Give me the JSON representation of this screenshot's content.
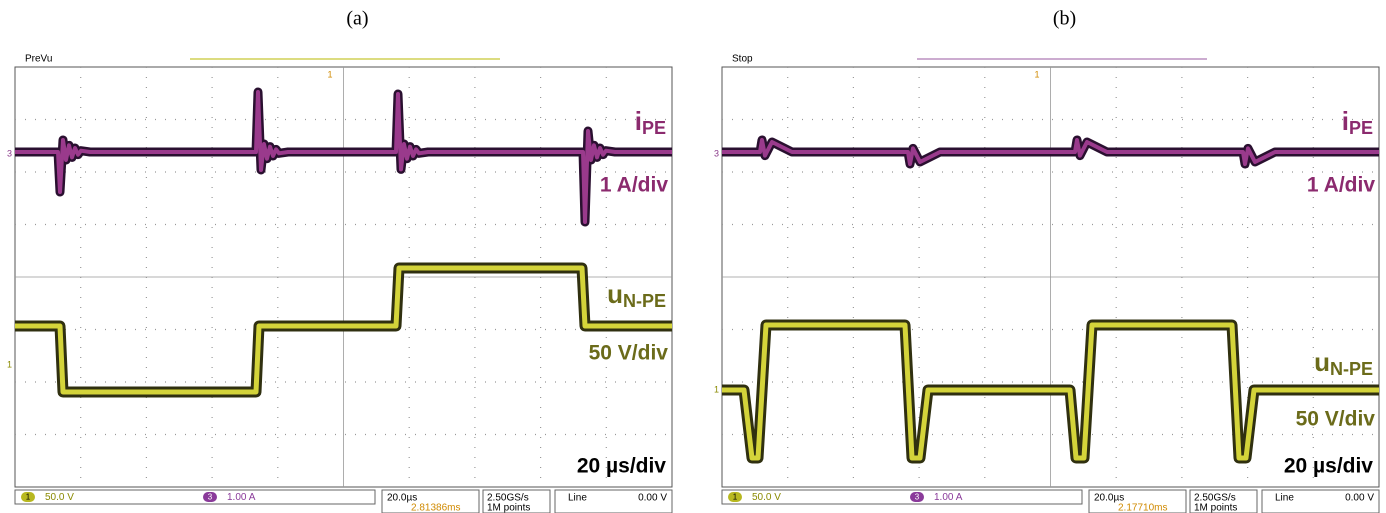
{
  "panels": [
    {
      "label": "(a)",
      "mode": "PreVu",
      "current": {
        "symbol": "i",
        "sub": "PE",
        "scale": "1 A/div"
      },
      "voltage": {
        "symbol": "u",
        "sub": "N-PE",
        "scale": "50 V/div"
      },
      "time_scale": "20 µs/div",
      "status": {
        "ch1_num": "1",
        "ch1": "50.0 V",
        "ch3_num": "3",
        "ch3": "1.00 A",
        "timebase": "20.0µs",
        "delay": "2.81386ms",
        "rate": "2.50GS/s",
        "points": "1M points",
        "trigger": "Line",
        "level": "0.00 V"
      }
    },
    {
      "label": "(b)",
      "mode": "Stop",
      "current": {
        "symbol": "i",
        "sub": "PE",
        "scale": "1 A/div"
      },
      "voltage": {
        "symbol": "u",
        "sub": "N-PE",
        "scale": "50 V/div"
      },
      "time_scale": "20 µs/div",
      "status": {
        "ch1_num": "1",
        "ch1": "50.0 V",
        "ch3_num": "3",
        "ch3": "1.00 A",
        "timebase": "20.0µs",
        "delay": "2.17710ms",
        "rate": "2.50GS/s",
        "points": "1M points",
        "trigger": "Line",
        "level": "0.00 V"
      }
    }
  ]
}
